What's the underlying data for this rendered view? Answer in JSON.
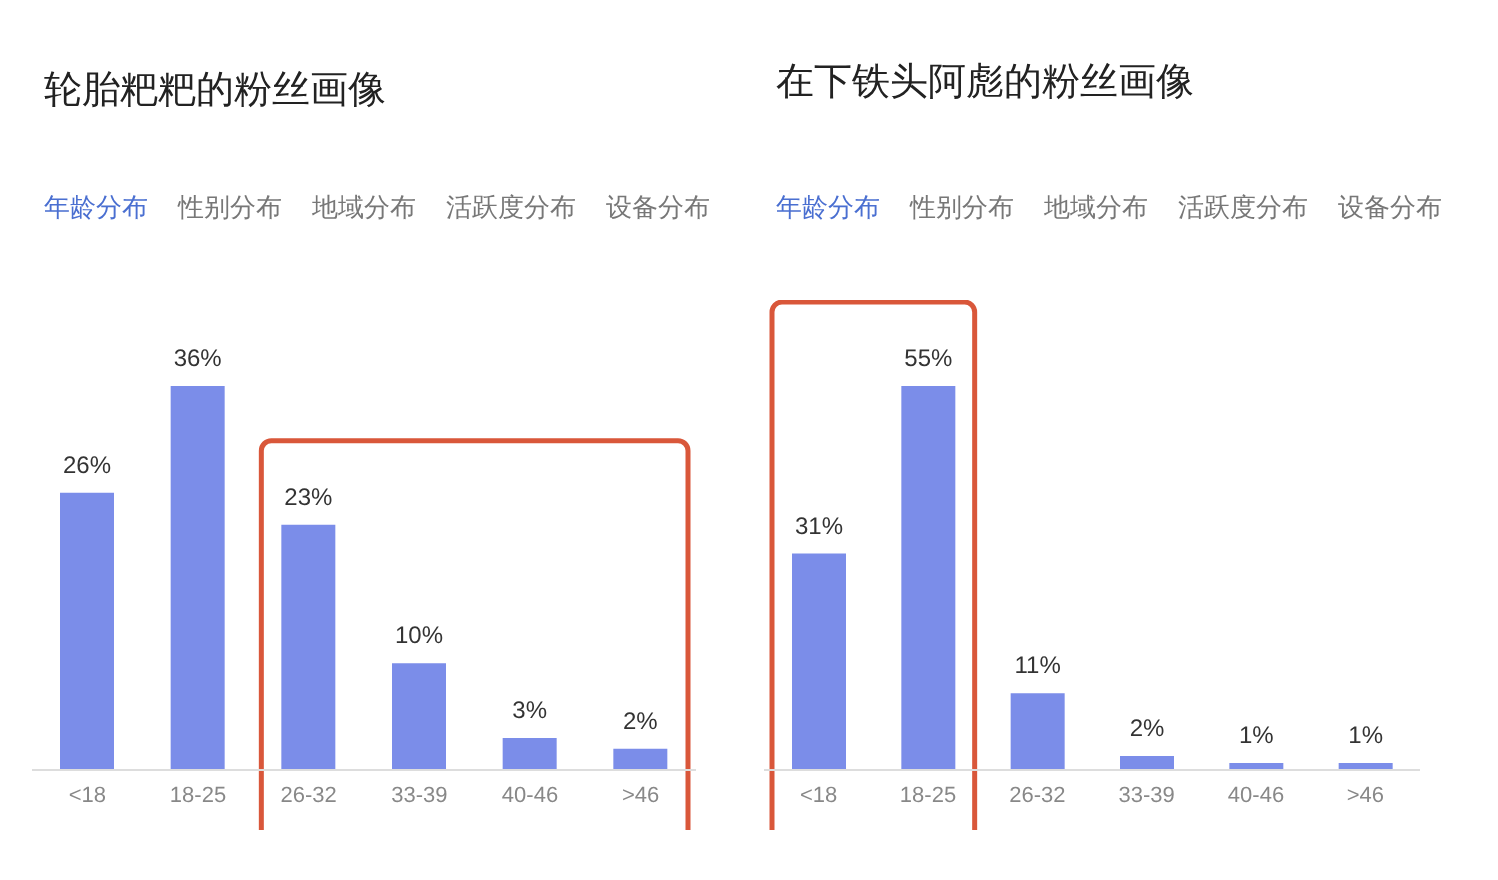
{
  "chart_data": [
    {
      "type": "bar",
      "title": "轮胎粑粑的粉丝画像",
      "annotations": [
        "年龄分布",
        "性别分布",
        "地域分布",
        "活跃度分布",
        "设备分布"
      ],
      "categories": [
        "<18",
        "18-25",
        "26-32",
        "33-39",
        "40-46",
        ">46"
      ],
      "values": [
        26,
        36,
        23,
        10,
        3,
        2
      ],
      "value_labels": [
        "26%",
        "36%",
        "23%",
        "10%",
        "3%",
        "2%"
      ],
      "color": "#7b8de9"
    },
    {
      "type": "bar",
      "title": "在下铁头阿彪的粉丝画像",
      "annotations": [
        "年龄分布",
        "性别分布",
        "地域分布",
        "活跃度分布",
        "设备分布"
      ],
      "categories": [
        "<18",
        "18-25",
        "26-32",
        "33-39",
        "40-46",
        ">46"
      ],
      "values": [
        31,
        55,
        11,
        2,
        1,
        1
      ],
      "value_labels": [
        "31%",
        "55%",
        "11%",
        "2%",
        "1%",
        "1%"
      ],
      "color": "#7b8de9"
    }
  ]
}
